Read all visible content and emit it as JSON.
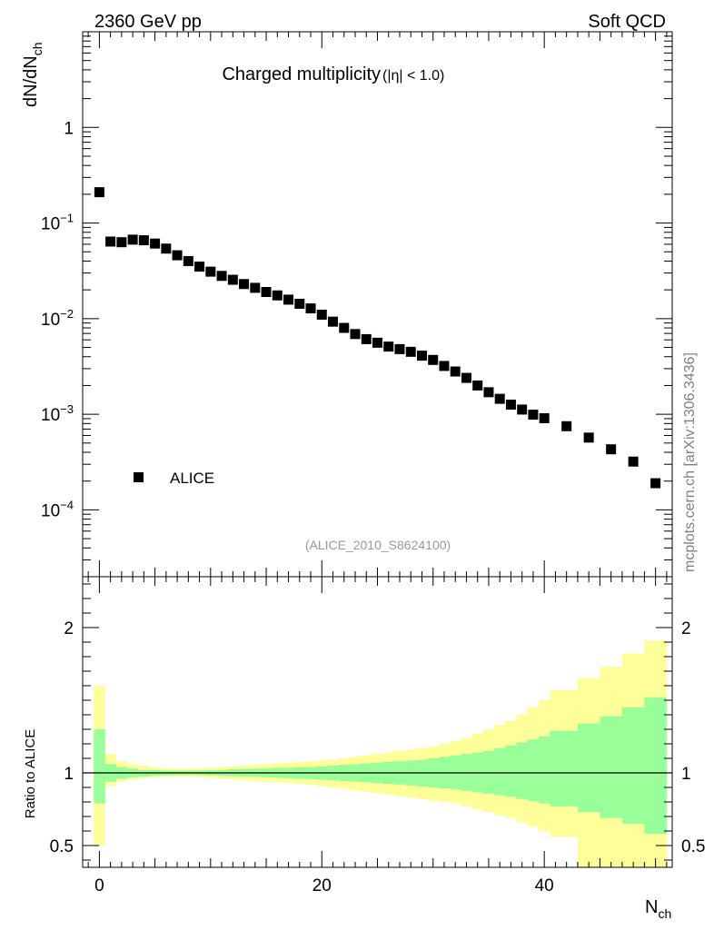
{
  "header": {
    "energy_label": "2360 GeV pp",
    "process_label": "Soft QCD"
  },
  "side_label": "mcplots.cern.ch [arXiv:1306.3436]",
  "chart_data": [
    {
      "type": "scatter",
      "title_main": "Charged multiplicity",
      "title_cut": "(|η| < 1.0)",
      "ylabel_main": "dN/dN",
      "ylabel_sub": "ch",
      "xlabel_main": "N",
      "xlabel_sub": "ch",
      "xlim": [
        -1.5,
        51.5
      ],
      "ylim": [
        2e-05,
        10
      ],
      "yscale": "log",
      "y_ticks": [
        {
          "value": 1,
          "mant": "1",
          "exp": ""
        },
        {
          "value": 0.1,
          "mant": "10",
          "exp": "−1"
        },
        {
          "value": 0.01,
          "mant": "10",
          "exp": "−2"
        },
        {
          "value": 0.001,
          "mant": "10",
          "exp": "−3"
        },
        {
          "value": 0.0001,
          "mant": "10",
          "exp": "−4"
        }
      ],
      "legend": {
        "label": "ALICE",
        "position": "lower-left"
      },
      "analysis_id": "(ALICE_2010_S8624100)",
      "series": [
        {
          "name": "ALICE",
          "x": [
            0,
            1,
            2,
            3,
            4,
            5,
            6,
            7,
            8,
            9,
            10,
            11,
            12,
            13,
            14,
            15,
            16,
            17,
            18,
            19,
            20,
            21,
            22,
            23,
            24,
            25,
            26,
            27,
            28,
            29,
            30,
            31,
            32,
            33,
            34,
            35,
            36,
            37,
            38,
            39,
            40,
            42,
            44,
            46,
            48,
            50
          ],
          "y": [
            0.21,
            0.064,
            0.063,
            0.067,
            0.066,
            0.061,
            0.054,
            0.046,
            0.04,
            0.035,
            0.031,
            0.028,
            0.0255,
            0.023,
            0.021,
            0.019,
            0.0175,
            0.0158,
            0.0143,
            0.0128,
            0.011,
            0.0093,
            0.008,
            0.0069,
            0.0061,
            0.0056,
            0.0051,
            0.0048,
            0.0045,
            0.0041,
            0.0037,
            0.0032,
            0.0028,
            0.0024,
            0.002,
            0.0017,
            0.00145,
            0.00126,
            0.00112,
            0.00099,
            0.00091,
            0.00075,
            0.00057,
            0.00043,
            0.00032,
            0.00019
          ]
        }
      ]
    },
    {
      "type": "area",
      "ylabel": "Ratio to ALICE",
      "xlim": [
        -1.5,
        51.5
      ],
      "ylim": [
        0.35,
        2.35
      ],
      "x_ticks": [
        0,
        20,
        40
      ],
      "y_ticks": [
        0.5,
        1,
        2
      ],
      "reference_line": 1,
      "bands": {
        "bin_edges": [
          -0.5,
          0.5,
          1.5,
          2.5,
          3.5,
          4.5,
          5.5,
          6.5,
          7.5,
          8.5,
          9.5,
          10.5,
          11.5,
          12.5,
          13.5,
          14.5,
          15.5,
          16.5,
          17.5,
          18.5,
          19.5,
          20.5,
          21.5,
          22.5,
          23.5,
          24.5,
          25.5,
          26.5,
          27.5,
          28.5,
          29.5,
          30.5,
          31.5,
          32.5,
          33.5,
          34.5,
          35.5,
          36.5,
          37.5,
          38.5,
          39.5,
          40.5,
          43,
          45,
          47,
          49,
          51
        ],
        "yellow_hi": [
          1.6,
          1.13,
          1.08,
          1.06,
          1.05,
          1.04,
          1.03,
          1.03,
          1.03,
          1.03,
          1.035,
          1.04,
          1.045,
          1.05,
          1.055,
          1.06,
          1.065,
          1.07,
          1.075,
          1.08,
          1.085,
          1.09,
          1.1,
          1.11,
          1.12,
          1.13,
          1.14,
          1.15,
          1.16,
          1.17,
          1.18,
          1.2,
          1.22,
          1.24,
          1.27,
          1.3,
          1.33,
          1.36,
          1.4,
          1.45,
          1.5,
          1.57,
          1.65,
          1.73,
          1.82,
          1.91
        ],
        "yellow_lo": [
          0.5,
          0.91,
          0.94,
          0.955,
          0.965,
          0.97,
          0.975,
          0.975,
          0.975,
          0.97,
          0.965,
          0.96,
          0.955,
          0.95,
          0.945,
          0.94,
          0.935,
          0.93,
          0.925,
          0.92,
          0.91,
          0.9,
          0.89,
          0.88,
          0.87,
          0.86,
          0.85,
          0.84,
          0.83,
          0.82,
          0.81,
          0.8,
          0.79,
          0.77,
          0.75,
          0.73,
          0.71,
          0.69,
          0.66,
          0.63,
          0.6,
          0.56,
          0.35,
          0.35,
          0.35,
          0.35
        ],
        "green_hi": [
          1.3,
          1.06,
          1.04,
          1.03,
          1.02,
          1.02,
          1.015,
          1.015,
          1.015,
          1.015,
          1.02,
          1.02,
          1.025,
          1.025,
          1.03,
          1.03,
          1.035,
          1.035,
          1.04,
          1.04,
          1.045,
          1.05,
          1.055,
          1.06,
          1.065,
          1.07,
          1.075,
          1.08,
          1.085,
          1.09,
          1.1,
          1.11,
          1.12,
          1.13,
          1.14,
          1.15,
          1.17,
          1.19,
          1.21,
          1.23,
          1.25,
          1.29,
          1.34,
          1.39,
          1.45,
          1.52
        ],
        "green_lo": [
          0.79,
          0.94,
          0.96,
          0.97,
          0.975,
          0.98,
          0.982,
          0.985,
          0.985,
          0.985,
          0.982,
          0.98,
          0.977,
          0.975,
          0.972,
          0.97,
          0.967,
          0.964,
          0.96,
          0.957,
          0.953,
          0.95,
          0.945,
          0.94,
          0.935,
          0.93,
          0.925,
          0.92,
          0.914,
          0.907,
          0.9,
          0.893,
          0.885,
          0.876,
          0.867,
          0.857,
          0.846,
          0.834,
          0.82,
          0.805,
          0.79,
          0.77,
          0.73,
          0.69,
          0.65,
          0.58
        ]
      }
    }
  ],
  "colors": {
    "data_marker": "#000000",
    "band_outer": "#ffff99",
    "band_inner": "#99ff99",
    "analysis_id": "#999999",
    "side_label": "#808080"
  }
}
